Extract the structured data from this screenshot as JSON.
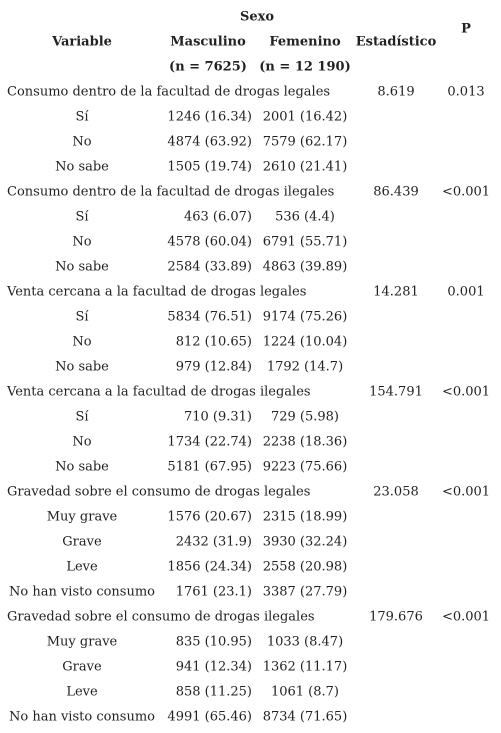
{
  "header": {
    "group": "Sexo",
    "columns": [
      "Variable",
      "Masculino",
      "Femenino",
      "Estadístico",
      "P"
    ],
    "n": [
      "(n = 7625)",
      "(n = 12 190)"
    ]
  },
  "table": {
    "groups": [
      {
        "title": "Consumo dentro de la facultad de drogas legales",
        "statistic": "8.619",
        "p": "0.013",
        "rows": [
          [
            "Sí",
            "1246 (16.34)",
            "2001 (16.42)"
          ],
          [
            "No",
            "4874 (63.92)",
            "7579 (62.17)"
          ],
          [
            "No sabe",
            "1505 (19.74)",
            "2610 (21.41)"
          ]
        ]
      },
      {
        "title": "Consumo dentro de la facultad de drogas ilegales",
        "statistic": "86.439",
        "p": "<0.001",
        "rows": [
          [
            "Sí",
            "463 (6.07)",
            "536 (4.4)"
          ],
          [
            "No",
            "4578 (60.04)",
            "6791 (55.71)"
          ],
          [
            "No sabe",
            "2584 (33.89)",
            "4863 (39.89)"
          ]
        ]
      },
      {
        "title": "Venta cercana a la facultad de drogas legales",
        "statistic": "14.281",
        "p": "0.001",
        "rows": [
          [
            "Sí",
            "5834 (76.51)",
            "9174 (75.26)"
          ],
          [
            "No",
            "812 (10.65)",
            "1224 (10.04)"
          ],
          [
            "No sabe",
            "979 (12.84)",
            "1792 (14.7)"
          ]
        ]
      },
      {
        "title": "Venta cercana a la facultad de drogas ilegales",
        "statistic": "154.791",
        "p": "<0.001",
        "rows": [
          [
            "Sí",
            "710 (9.31)",
            "729 (5.98)"
          ],
          [
            "No",
            "1734 (22.74)",
            "2238 (18.36)"
          ],
          [
            "No sabe",
            "5181 (67.95)",
            "9223 (75.66)"
          ]
        ]
      },
      {
        "title": "Gravedad sobre el consumo de drogas legales",
        "statistic": "23.058",
        "p": "<0.001",
        "rows": [
          [
            "Muy grave",
            "1576 (20.67)",
            "2315 (18.99)"
          ],
          [
            "Grave",
            "2432 (31.9)",
            "3930 (32.24)"
          ],
          [
            "Leve",
            "1856 (24.34)",
            "2558 (20.98)"
          ],
          [
            "No han visto consumo",
            "1761 (23.1)",
            "3387 (27.79)"
          ]
        ]
      },
      {
        "title": "Gravedad sobre el consumo de drogas ilegales",
        "statistic": "179.676",
        "p": "<0.001",
        "rows": [
          [
            "Muy grave",
            "835 (10.95)",
            "1033 (8.47)"
          ],
          [
            "Grave",
            "941 (12.34)",
            "1362 (11.17)"
          ],
          [
            "Leve",
            "858 (11.25)",
            "1061 (8.7)"
          ],
          [
            "No han visto consumo",
            "4991 (65.46)",
            "8734 (71.65)"
          ]
        ]
      }
    ]
  }
}
